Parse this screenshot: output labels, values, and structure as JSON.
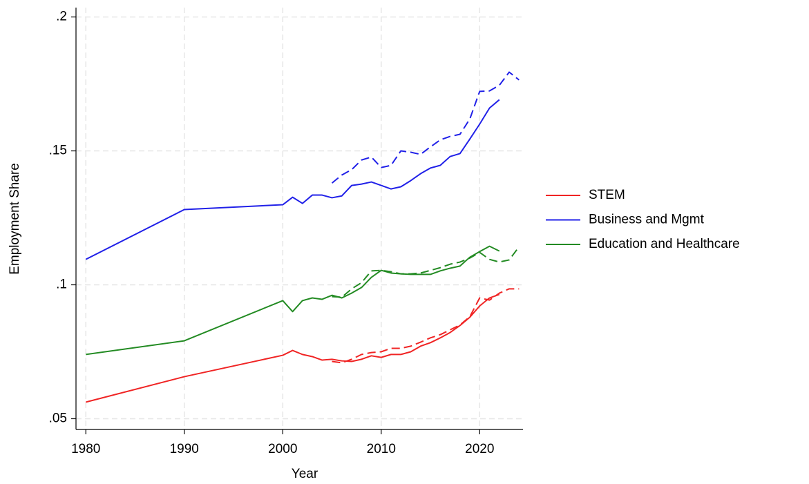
{
  "chart_data": {
    "type": "line",
    "xlabel": "Year",
    "ylabel": "Employment Share",
    "xlim": [
      1979,
      2024.4
    ],
    "ylim": [
      0.046,
      0.2035
    ],
    "xticks": [
      1980,
      1990,
      2000,
      2010,
      2020
    ],
    "yticks": [
      {
        "value": 0.05,
        "label": ".05"
      },
      {
        "value": 0.1,
        "label": ".1"
      },
      {
        "value": 0.15,
        "label": ".15"
      },
      {
        "value": 0.2,
        "label": ".2"
      }
    ],
    "grid": true,
    "legend": "right",
    "series": [
      {
        "name": "STEM",
        "color": "#f02424",
        "dash": false,
        "x": [
          1980,
          1990,
          2000,
          2001,
          2002,
          2003,
          2004,
          2005,
          2006,
          2007,
          2008,
          2009,
          2010,
          2011,
          2012,
          2013,
          2014,
          2015,
          2016,
          2017,
          2018,
          2019,
          2020,
          2021,
          2022
        ],
        "values": [
          0.0562,
          0.0657,
          0.0737,
          0.0755,
          0.074,
          0.0732,
          0.0719,
          0.0722,
          0.0716,
          0.0714,
          0.0722,
          0.0735,
          0.0729,
          0.074,
          0.074,
          0.075,
          0.0771,
          0.0784,
          0.0802,
          0.0822,
          0.0848,
          0.0879,
          0.0921,
          0.0951,
          0.0964
        ]
      },
      {
        "name": "Business and Mgmt",
        "color": "#2020e8",
        "dash": false,
        "x": [
          1980,
          1990,
          2000,
          2001,
          2002,
          2003,
          2004,
          2005,
          2006,
          2007,
          2008,
          2009,
          2010,
          2011,
          2012,
          2013,
          2014,
          2015,
          2016,
          2017,
          2018,
          2019,
          2020,
          2021,
          2022
        ],
        "values": [
          0.1095,
          0.1281,
          0.1299,
          0.1327,
          0.1304,
          0.1335,
          0.1335,
          0.1325,
          0.1332,
          0.1371,
          0.1376,
          0.1384,
          0.1371,
          0.1358,
          0.1366,
          0.1389,
          0.1415,
          0.1436,
          0.1446,
          0.1479,
          0.149,
          0.1544,
          0.16,
          0.166,
          0.1691
        ]
      },
      {
        "name": "Education and Healthcare",
        "color": "#238b23",
        "dash": false,
        "x": [
          1980,
          1990,
          2000,
          2001,
          2002,
          2003,
          2004,
          2005,
          2006,
          2007,
          2008,
          2009,
          2010,
          2011,
          2012,
          2013,
          2014,
          2015,
          2016,
          2017,
          2018,
          2019,
          2020,
          2021,
          2022
        ],
        "values": [
          0.074,
          0.0791,
          0.0941,
          0.09,
          0.0941,
          0.0951,
          0.0946,
          0.0961,
          0.0951,
          0.0969,
          0.099,
          0.1028,
          0.1054,
          0.1044,
          0.1041,
          0.1039,
          0.1039,
          0.1039,
          0.1052,
          0.1062,
          0.107,
          0.1103,
          0.1124,
          0.1144,
          0.1126
        ]
      },
      {
        "color": "#f02424",
        "dash": true,
        "x": [
          2005,
          2006,
          2007,
          2008,
          2009,
          2010,
          2011,
          2012,
          2013,
          2014,
          2015,
          2016,
          2017,
          2018,
          2019,
          2020,
          2021,
          2022,
          2023,
          2024
        ],
        "values": [
          0.0714,
          0.0709,
          0.0722,
          0.074,
          0.0747,
          0.075,
          0.0763,
          0.0763,
          0.0771,
          0.0786,
          0.0802,
          0.0814,
          0.0832,
          0.085,
          0.0881,
          0.0951,
          0.0943,
          0.0969,
          0.0985,
          0.0985
        ]
      },
      {
        "color": "#2020e8",
        "dash": true,
        "x": [
          2005,
          2006,
          2007,
          2008,
          2009,
          2010,
          2011,
          2012,
          2013,
          2014,
          2015,
          2016,
          2017,
          2018,
          2019,
          2020,
          2021,
          2022,
          2023,
          2024
        ],
        "values": [
          0.138,
          0.141,
          0.143,
          0.1466,
          0.1477,
          0.1438,
          0.1446,
          0.15,
          0.1495,
          0.1487,
          0.1515,
          0.1541,
          0.1554,
          0.1562,
          0.1619,
          0.1722,
          0.1724,
          0.1745,
          0.1794,
          0.1765
        ]
      },
      {
        "color": "#238b23",
        "dash": true,
        "x": [
          2005,
          2006,
          2007,
          2008,
          2009,
          2010,
          2011,
          2012,
          2013,
          2014,
          2015,
          2016,
          2017,
          2018,
          2019,
          2020,
          2021,
          2022,
          2023,
          2024
        ],
        "values": [
          0.0956,
          0.0954,
          0.0985,
          0.1008,
          0.1052,
          0.1054,
          0.1049,
          0.1041,
          0.1041,
          0.1044,
          0.1054,
          0.1064,
          0.1077,
          0.1085,
          0.11,
          0.1121,
          0.1095,
          0.1085,
          0.1093,
          0.1142
        ]
      }
    ]
  }
}
